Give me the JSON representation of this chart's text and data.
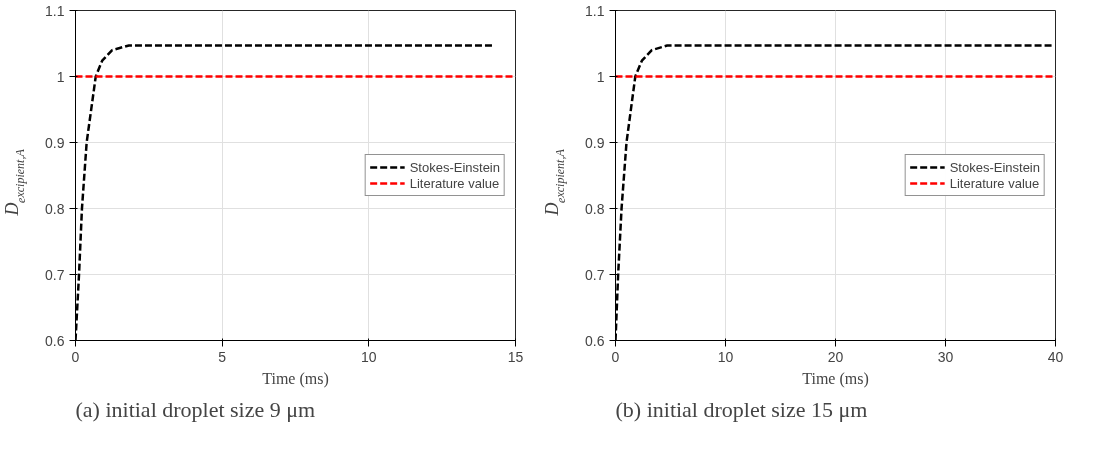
{
  "chart_data": [
    {
      "type": "line",
      "xlabel": "Time (ms)",
      "ylabel": "D$_{excipient,A}$",
      "xlim": [
        0,
        15
      ],
      "ylim": [
        0.6,
        1.1
      ],
      "xticks": [
        0,
        5,
        10,
        15
      ],
      "yticks": [
        0.6,
        0.7,
        0.8,
        0.9,
        1,
        1.1
      ],
      "grid": true,
      "legend": "right",
      "line_style": "dashed",
      "series": [
        {
          "name": "Stokes-Einstein",
          "color": "#000000",
          "x": [
            0,
            0.12,
            0.22,
            0.38,
            0.69,
            0.91,
            1.25,
            1.82,
            14.3
          ],
          "values": [
            0.6,
            0.7,
            0.8,
            0.9,
            1.0,
            1.024,
            1.04,
            1.047,
            1.047
          ]
        },
        {
          "name": "Literature value",
          "color": "#ff0000",
          "x": [
            0,
            15
          ],
          "values": [
            1,
            1
          ]
        }
      ],
      "annotations": [
        "(a) initial droplet size 9 μm"
      ]
    },
    {
      "type": "line",
      "xlabel": "Time (ms)",
      "ylabel": "D$_{excipient,A}$",
      "xlim": [
        0,
        40
      ],
      "ylim": [
        0.6,
        1.1
      ],
      "xticks": [
        0,
        10,
        20,
        30,
        40
      ],
      "yticks": [
        0.6,
        0.7,
        0.8,
        0.9,
        1,
        1.1
      ],
      "grid": true,
      "legend": "right",
      "line_style": "dashed",
      "series": [
        {
          "name": "Stokes-Einstein",
          "color": "#000000",
          "x": [
            0,
            0.24,
            0.55,
            1.0,
            1.8,
            2.4,
            3.3,
            4.7,
            39.7
          ],
          "values": [
            0.6,
            0.7,
            0.8,
            0.9,
            1.0,
            1.024,
            1.04,
            1.047,
            1.047
          ]
        },
        {
          "name": "Literature value",
          "color": "#ff0000",
          "x": [
            0,
            40
          ],
          "values": [
            1,
            1
          ]
        }
      ],
      "annotations": [
        "(b) initial droplet size 15 μm"
      ]
    }
  ]
}
